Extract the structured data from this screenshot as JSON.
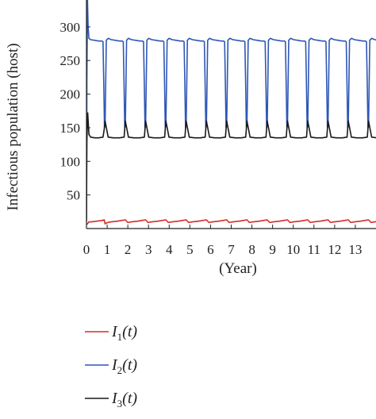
{
  "chart_data": {
    "type": "line",
    "xlabel": "(Year)",
    "ylabel": "Infectious population (host)",
    "xlim": [
      0,
      14
    ],
    "ylim": [
      0,
      340
    ],
    "x_ticks": [
      0,
      1,
      2,
      3,
      4,
      5,
      6,
      7,
      8,
      9,
      10,
      11,
      12,
      13
    ],
    "y_ticks": [
      50,
      100,
      150,
      200,
      250,
      300
    ],
    "grid": false,
    "legend_position": "below",
    "series": [
      {
        "name": "I_1(t)",
        "label_main": "I",
        "label_sub": "1",
        "label_rest": "(t)",
        "color": "#d62a2a",
        "x": [
          0,
          0.05,
          0.12,
          0.25,
          0.5,
          0.75,
          0.86,
          0.9,
          1.02,
          1.2,
          1.5,
          1.7,
          1.88
        ],
        "y": [
          6,
          7,
          10,
          10,
          11,
          12,
          13,
          7,
          9,
          10,
          11,
          12,
          13
        ],
        "periodic_from_x": 0.9,
        "period": 0.98,
        "end_x": 14
      },
      {
        "name": "I_2(t)",
        "label_main": "I",
        "label_sub": "2",
        "label_rest": "(t)",
        "color": "#2f57b5",
        "x": [
          0,
          0.02,
          0.05,
          0.08,
          0.12,
          0.2,
          0.4,
          0.6,
          0.75,
          0.8,
          0.84,
          0.87,
          0.9,
          0.96,
          1.05,
          1.2,
          1.4,
          1.6,
          1.73,
          1.78,
          1.82,
          1.85,
          1.88
        ],
        "y": [
          15,
          220,
          340,
          300,
          283,
          281,
          280,
          279,
          279,
          278,
          210,
          150,
          152,
          280,
          283,
          281,
          280,
          279,
          279,
          278,
          210,
          150,
          152
        ],
        "periodic_from_x": 0.9,
        "period": 0.98,
        "end_x": 14
      },
      {
        "name": "I_3(t)",
        "label_main": "I",
        "label_sub": "3",
        "label_rest": "(t)",
        "color": "#1a1a1a",
        "x": [
          0,
          0.02,
          0.06,
          0.12,
          0.2,
          0.4,
          0.6,
          0.8,
          0.86,
          0.9,
          1.05,
          1.3,
          1.6,
          1.82,
          1.85,
          1.88
        ],
        "y": [
          10,
          130,
          172,
          140,
          136,
          135,
          135,
          136,
          148,
          160,
          136,
          135,
          135,
          136,
          148,
          160
        ],
        "periodic_from_x": 0.9,
        "period": 0.98,
        "end_x": 14
      }
    ]
  }
}
